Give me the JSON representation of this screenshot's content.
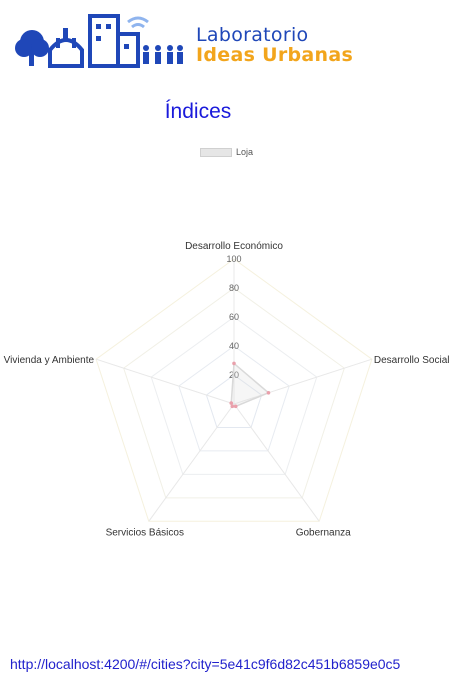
{
  "header": {
    "brand_line1": "Laboratorio",
    "brand_line2": "Ideas Urbanas",
    "colors": {
      "blue": "#1f47b8",
      "orange": "#f2a51c",
      "light_blue": "#8fb4ee"
    }
  },
  "page": {
    "title": "Índices",
    "url": "http://localhost:4200/#/cities?city=5e41c9f6d82c451b6859e0c5"
  },
  "chart_data": {
    "type": "radar",
    "title": "",
    "legend": {
      "position": "top",
      "entries": [
        "Loja"
      ]
    },
    "axes": [
      "Desarrollo Económico",
      "Desarrollo Social",
      "Gobernanza",
      "Servicios Básicos",
      "Vivienda y Ambiente"
    ],
    "scale": {
      "min": 0,
      "max": 100,
      "step": 20,
      "ticks": [
        "20",
        "40",
        "60",
        "80",
        "100"
      ]
    },
    "grid": true,
    "series": [
      {
        "name": "Loja",
        "values": [
          28,
          25,
          2,
          2,
          2
        ],
        "color": "#e9a0ab"
      }
    ]
  }
}
